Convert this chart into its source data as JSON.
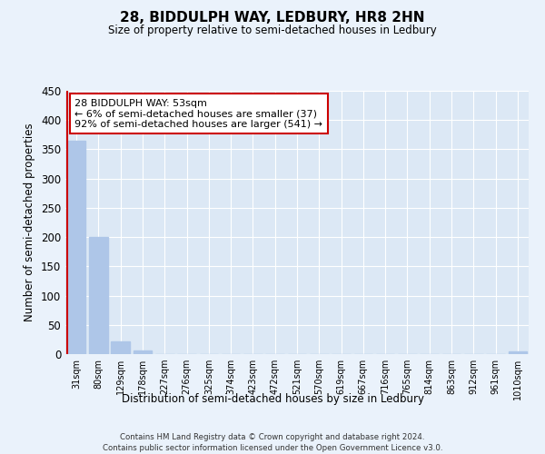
{
  "title": "28, BIDDULPH WAY, LEDBURY, HR8 2HN",
  "subtitle": "Size of property relative to semi-detached houses in Ledbury",
  "xlabel": "Distribution of semi-detached houses by size in Ledbury",
  "ylabel": "Number of semi-detached properties",
  "categories": [
    "31sqm",
    "80sqm",
    "129sqm",
    "178sqm",
    "227sqm",
    "276sqm",
    "325sqm",
    "374sqm",
    "423sqm",
    "472sqm",
    "521sqm",
    "570sqm",
    "619sqm",
    "667sqm",
    "716sqm",
    "765sqm",
    "814sqm",
    "863sqm",
    "912sqm",
    "961sqm",
    "1010sqm"
  ],
  "values": [
    365,
    200,
    21,
    6,
    0,
    0,
    0,
    0,
    0,
    0,
    0,
    0,
    0,
    0,
    0,
    0,
    0,
    0,
    0,
    0,
    5
  ],
  "bar_color": "#aec6e8",
  "annotation_text_line1": "28 BIDDULPH WAY: 53sqm",
  "annotation_text_line2": "← 6% of semi-detached houses are smaller (37)",
  "annotation_text_line3": "92% of semi-detached houses are larger (541) →",
  "annotation_box_facecolor": "#ffffff",
  "annotation_box_edgecolor": "#cc0000",
  "red_line_color": "#cc0000",
  "ylim": [
    0,
    450
  ],
  "yticks": [
    0,
    50,
    100,
    150,
    200,
    250,
    300,
    350,
    400,
    450
  ],
  "background_color": "#dce8f5",
  "fig_background_color": "#eaf2fb",
  "grid_color": "#ffffff",
  "footer_line1": "Contains HM Land Registry data © Crown copyright and database right 2024.",
  "footer_line2": "Contains public sector information licensed under the Open Government Licence v3.0."
}
